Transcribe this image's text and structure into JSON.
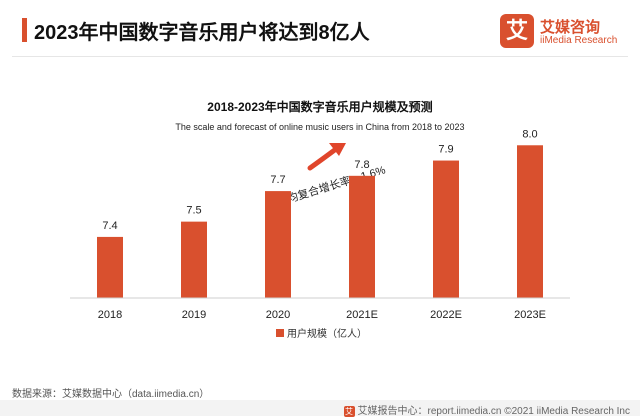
{
  "header": {
    "title": "2023年中国数字音乐用户将达到8亿人",
    "logo_mark": "艾",
    "logo_cn": "艾媒咨询",
    "logo_en": "iiMedia Research"
  },
  "chart_data": {
    "type": "bar",
    "title": "2018-2023年中国数字音乐用户规模及预测",
    "subtitle": "The scale and forecast of online music users in China from 2018 to 2023",
    "categories": [
      "2018",
      "2019",
      "2020",
      "2021E",
      "2022E",
      "2023E"
    ],
    "series": [
      {
        "name": "用户规模（亿人）",
        "values": [
          7.4,
          7.5,
          7.7,
          7.8,
          7.9,
          8.0
        ]
      }
    ],
    "value_labels": [
      "7.4",
      "7.5",
      "7.7",
      "7.8",
      "7.9",
      "8.0"
    ],
    "annotation": "年均复合增长率：1.6%",
    "legend_position": "bottom",
    "grid": false,
    "ylim": [
      7.0,
      8.1
    ],
    "colors": {
      "bar": "#d9502e",
      "arrow": "#e0452b"
    }
  },
  "footer": {
    "source": "数据来源：艾媒数据中心（data.iimedia.cn）",
    "logo_mark": "艾",
    "right": "艾媒报告中心：report.iimedia.cn ©2021  iiMedia Research  Inc"
  }
}
